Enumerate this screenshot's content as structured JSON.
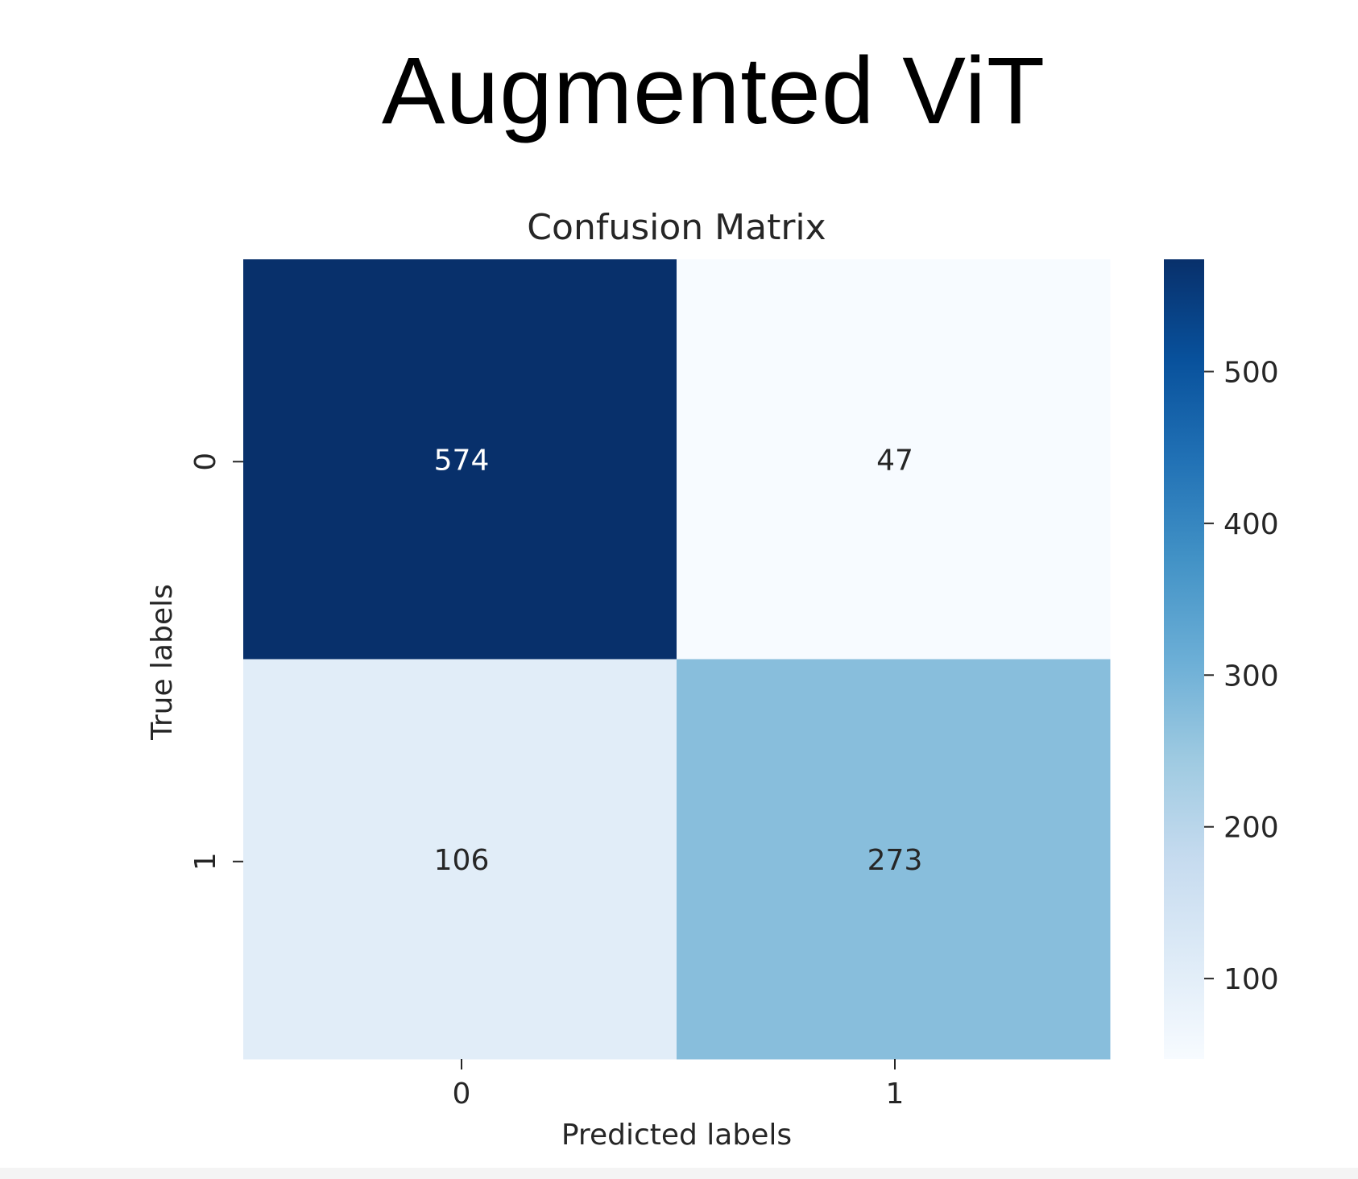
{
  "page": {
    "title": "Augmented ViT"
  },
  "chart_data": {
    "type": "heatmap",
    "title": "Confusion Matrix",
    "xlabel": "Predicted labels",
    "ylabel": "True labels",
    "x_categories": [
      "0",
      "1"
    ],
    "y_categories": [
      "0",
      "1"
    ],
    "matrix": [
      [
        574,
        47
      ],
      [
        106,
        273
      ]
    ],
    "colormap": "Blues",
    "colorbar": {
      "min": 47,
      "max": 574,
      "ticks": [
        100,
        200,
        300,
        400,
        500
      ]
    },
    "colors": {
      "text_dark": "#262626",
      "text_light": "#ffffff"
    }
  }
}
